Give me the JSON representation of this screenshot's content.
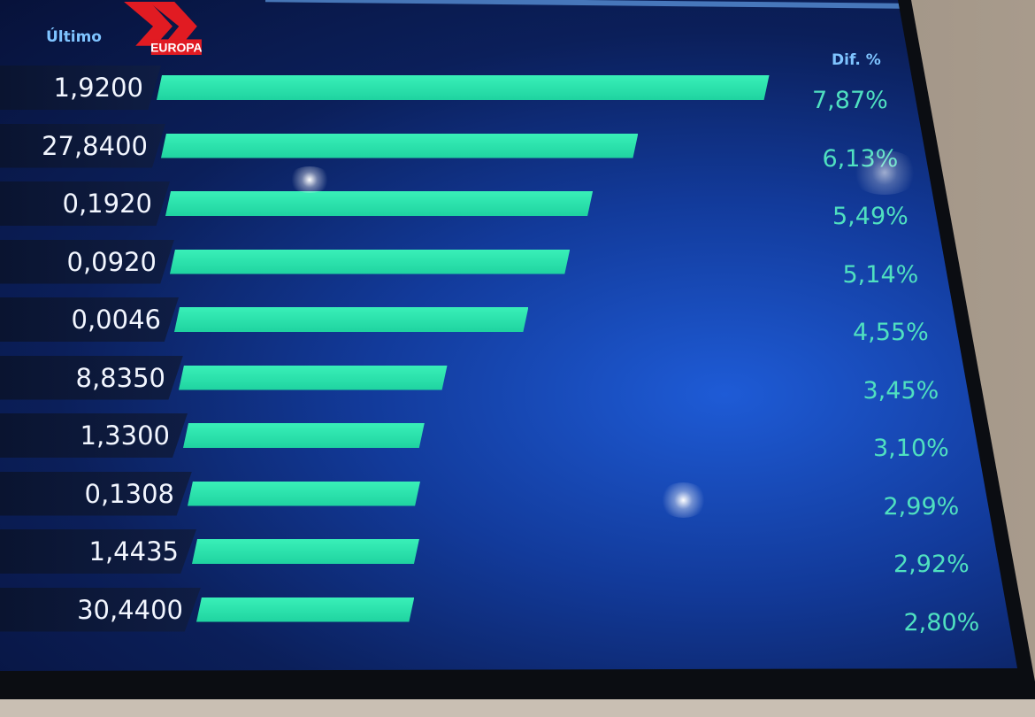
{
  "header": {
    "last_label": "Último",
    "change_label": "Dif. %"
  },
  "logo": {
    "text": "EUROPA",
    "color": "#e11b22"
  },
  "colors": {
    "bar": "#2ee3ab",
    "screen_bg": "#123a9a",
    "pct_text": "#4fe0c0",
    "header_text": "#7fc4ff"
  },
  "chart_data": {
    "type": "bar",
    "orientation": "horizontal",
    "columns": [
      "Último",
      "Dif. %"
    ],
    "last_values": [
      "1,9200",
      "27,8400",
      "0,1920",
      "0,0920",
      "0,0046",
      "8,8350",
      "1,3300",
      "0,1308",
      "1,4435",
      "30,4400"
    ],
    "pct_labels": [
      "7,87%",
      "6,13%",
      "5,49%",
      "5,14%",
      "4,55%",
      "3,45%",
      "3,10%",
      "2,99%",
      "2,92%",
      "2,80%"
    ],
    "values": [
      7.87,
      6.13,
      5.49,
      5.14,
      4.55,
      3.45,
      3.1,
      2.99,
      2.92,
      2.8
    ]
  }
}
